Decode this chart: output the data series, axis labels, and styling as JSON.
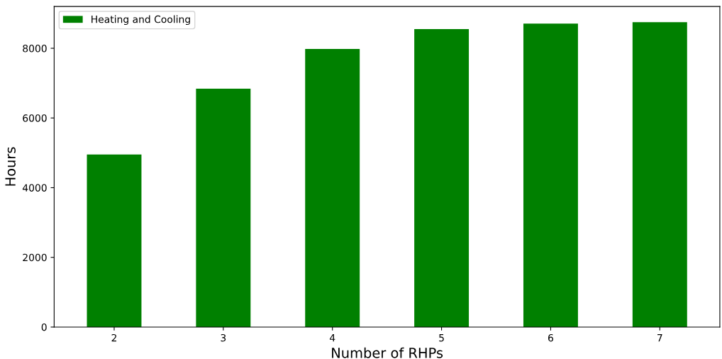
{
  "chart_data": {
    "type": "bar",
    "xlabel": "Number of RHPs",
    "ylabel": "Hours",
    "categories": [
      "2",
      "3",
      "4",
      "5",
      "6",
      "7"
    ],
    "series": [
      {
        "name": "Heating and Cooling",
        "color": "#008000",
        "values": [
          4950,
          6840,
          7980,
          8550,
          8710,
          8750
        ]
      }
    ],
    "ylim": [
      0,
      9200
    ],
    "yticks": [
      0,
      2000,
      4000,
      6000,
      8000
    ],
    "grid": false,
    "legend": "top left"
  }
}
